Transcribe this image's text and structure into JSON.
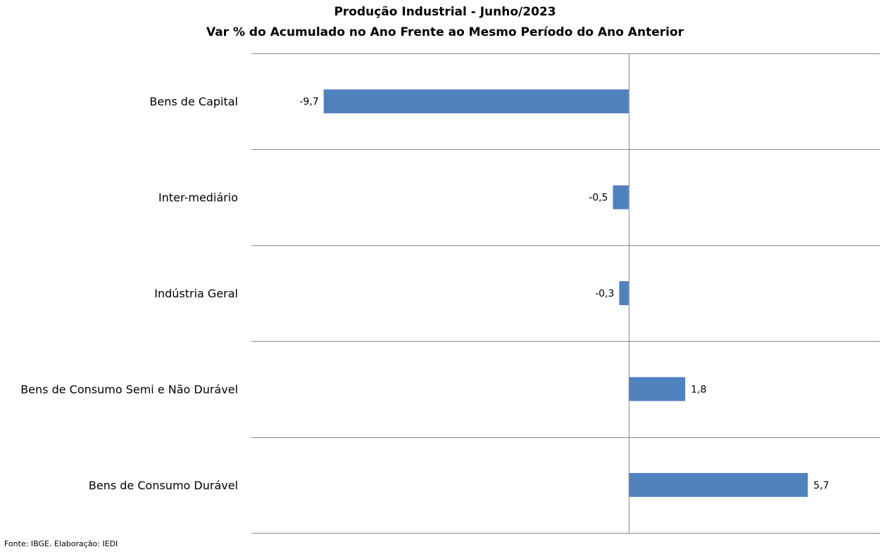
{
  "source": "Fonte: IBGE. Elaboração: IEDI",
  "chart_data": {
    "type": "bar",
    "orientation": "horizontal",
    "title": "Produção Industrial - Junho/2023",
    "subtitle": "Var % do Acumulado no Ano Frente ao Mesmo Período do Ano Anterior",
    "categories": [
      "Bens de Capital",
      "Inter-mediário",
      "Indústria Geral",
      "Bens de Consumo Semi e Não Durável",
      "Bens de Consumo Durável"
    ],
    "values": [
      -9.7,
      -0.5,
      -0.3,
      1.8,
      5.7
    ],
    "data_labels": [
      "-9,7",
      "-0,5",
      "-0,3",
      "1,8",
      "5,7"
    ],
    "xlim": [
      -12,
      8
    ],
    "xlabel": "",
    "ylabel": "",
    "grid": true,
    "legend": "none",
    "colors": {
      "bar": "#4f81bd",
      "grid": "#888888",
      "axis": "#888888"
    }
  }
}
